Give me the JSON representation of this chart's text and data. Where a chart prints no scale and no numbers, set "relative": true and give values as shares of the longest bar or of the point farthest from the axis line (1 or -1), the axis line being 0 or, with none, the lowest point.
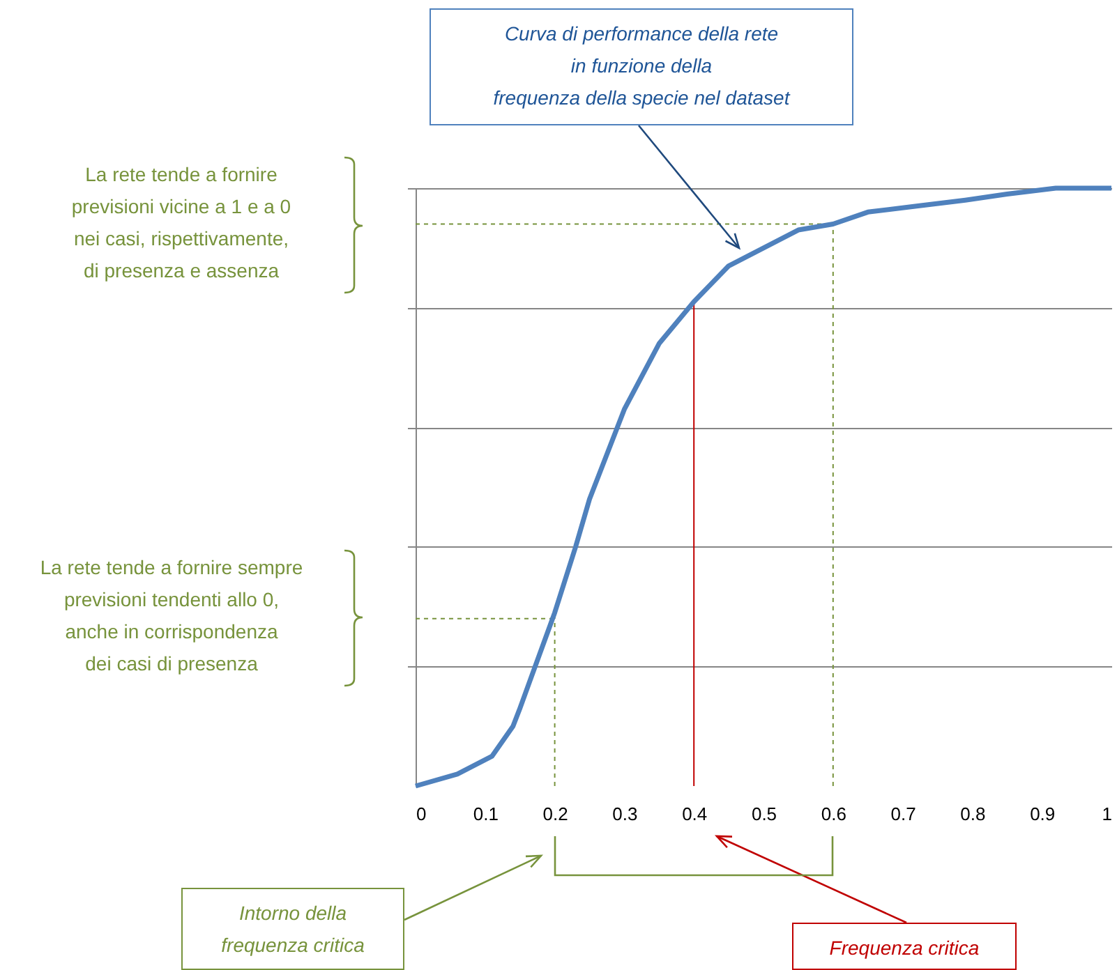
{
  "chart_data": {
    "type": "line",
    "relative": true,
    "x": [
      0,
      0.06,
      0.11,
      0.14,
      0.15,
      0.2,
      0.23,
      0.25,
      0.3,
      0.35,
      0.4,
      0.45,
      0.5,
      0.55,
      0.6,
      0.65,
      0.72,
      0.79,
      0.85,
      0.92,
      1
    ],
    "series": [
      {
        "color": "#4f81bd",
        "values": [
          0,
          0.02,
          0.05,
          0.1,
          0.13,
          0.29,
          0.4,
          0.48,
          0.63,
          0.74,
          0.81,
          0.87,
          0.9,
          0.93,
          0.94,
          0.96,
          0.97,
          0.98,
          0.99,
          1,
          1
        ]
      }
    ],
    "xlim": [
      0,
      1
    ],
    "xticks": [
      0,
      0.1,
      0.2,
      0.3,
      0.4,
      0.5,
      0.6,
      0.7,
      0.8,
      0.9,
      1
    ],
    "grid": "y",
    "marker": "none",
    "line_style": "solid",
    "ref_lines": [
      {
        "axis": "x",
        "value": 0.2,
        "color": "#77933c",
        "line_style": "dashed"
      },
      {
        "axis": "x",
        "value": 0.6,
        "color": "#77933c",
        "line_style": "dashed"
      },
      {
        "axis": "x",
        "value": 0.4,
        "color": "#c00000",
        "line_style": "solid"
      },
      {
        "axis": "y",
        "value": 0.28,
        "color": "#77933c",
        "line_style": "dashed"
      },
      {
        "axis": "y",
        "value": 0.94,
        "color": "#77933c",
        "line_style": "dashed"
      }
    ],
    "annotations": [
      "Curva di performance della rete\nin funzione della\nfrequenza della specie nel dataset",
      "La rete tende a fornire\nprevisioni vicine a 1 e a 0\nnei casi, rispettivamente,\ndi presenza e assenza",
      "La rete tende a fornire sempre\nprevisioni tendenti allo 0,\nanche in corrispondenza\ndei casi di presenza",
      "Intorno della\nfrequenza critica",
      "Frequenza critica"
    ]
  }
}
